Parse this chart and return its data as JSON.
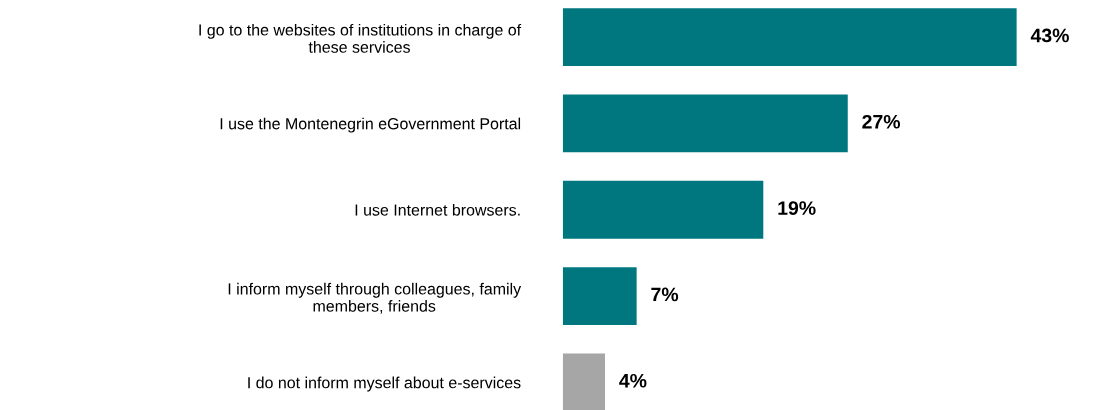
{
  "chart_data": {
    "type": "bar",
    "orientation": "horizontal",
    "categories": [
      "I go to the websites of institutions in charge of\nthese services",
      "I use the Montenegrin eGovernment Portal",
      "I use Internet browsers.",
      "I inform myself through colleagues, family\nmembers, friends",
      "I do not inform myself about e-services"
    ],
    "values": [
      43,
      27,
      19,
      7,
      4
    ],
    "colors": [
      "#00777f",
      "#00777f",
      "#00777f",
      "#00777f",
      "#a6a6a6"
    ],
    "value_labels": [
      "43%",
      "27%",
      "19%",
      "7%",
      "4%"
    ]
  }
}
